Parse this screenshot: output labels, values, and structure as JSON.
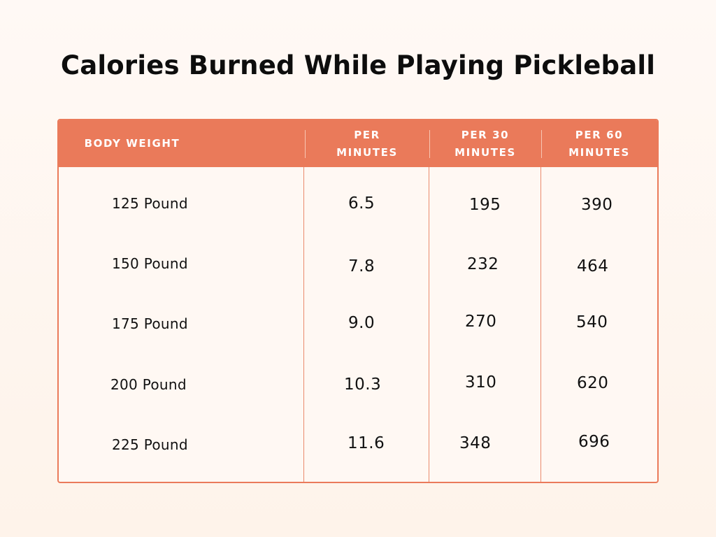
{
  "title": "Calories Burned While Playing Pickleball",
  "table": {
    "headers": [
      "BODY WEIGHT",
      "PER\nMINUTES",
      "PER 30\nMINUTES",
      "PER 60\nMINUTES"
    ],
    "rows": [
      [
        "125 Pound",
        "6.5",
        "195",
        "390"
      ],
      [
        "150 Pound",
        "7.8",
        "232",
        "464"
      ],
      [
        "175 Pound",
        "9.0",
        "270",
        "540"
      ],
      [
        "200 Pound",
        "10.3",
        "310",
        "620"
      ],
      [
        "225 Pound",
        "11.6",
        "348",
        "696"
      ]
    ]
  },
  "colors": {
    "accent": "#ea7a5a",
    "header_text": "#ffffff",
    "body_text": "#111111"
  }
}
